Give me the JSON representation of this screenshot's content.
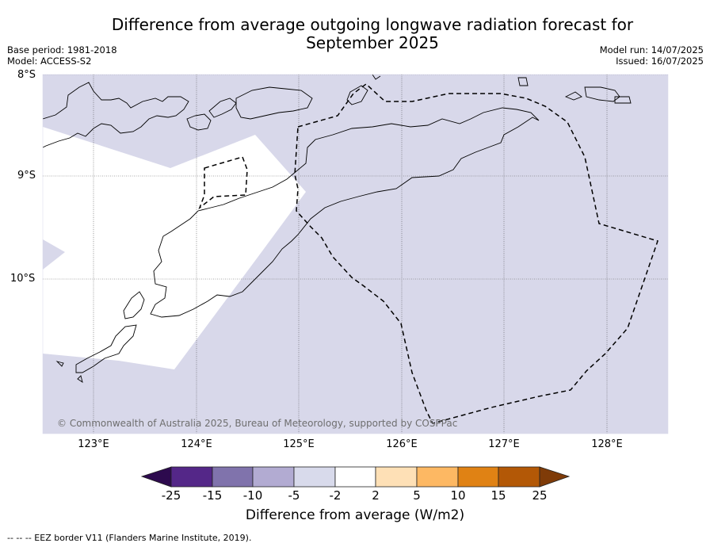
{
  "title": "Difference from average outgoing longwave radiation forecast for September 2025",
  "meta_left": {
    "base_period": "Base period: 1981-2018",
    "model": "Model: ACCESS-S2"
  },
  "meta_right": {
    "model_run": "Model run: 14/07/2025",
    "issued": "Issued: 16/07/2025"
  },
  "map": {
    "lat_labels": [
      "8°S",
      "9°S",
      "10°S"
    ],
    "lon_labels": [
      "123°E",
      "124°E",
      "125°E",
      "126°E",
      "127°E",
      "128°E"
    ],
    "copyright": "© Commonwealth of Australia 2025, Bureau of Meteorology, supported by COSPPac",
    "fill_colors": {
      "minus_2_to_minus_5": "#d8d8ea",
      "neutral": "#ffffff"
    }
  },
  "colorbar": {
    "ticks": [
      "-25",
      "-15",
      "-10",
      "-5",
      "-2",
      "2",
      "5",
      "10",
      "15",
      "25"
    ],
    "colors": [
      "#2d0a4e",
      "#542788",
      "#8073ac",
      "#b2abd2",
      "#d8daeb",
      "#ffffff",
      "#fee0b6",
      "#fdb863",
      "#e08214",
      "#b35806",
      "#7f3b08"
    ],
    "label": "Difference from average (W/m2)"
  },
  "footnote": "--  --  -- EEZ border V11 (Flanders Marine Institute, 2019)."
}
